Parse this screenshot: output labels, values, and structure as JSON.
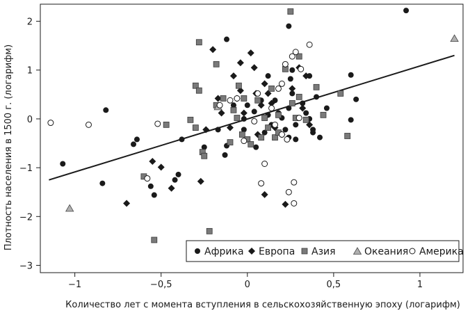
{
  "chart_data": {
    "type": "scatter",
    "xlabel": "Количество лет с момента вступления в сельскохозяйственную эпоху (логарифм)",
    "ylabel": "Плотность населения в 1500 г. (логарифм)",
    "xlim": [
      -1.2,
      1.25
    ],
    "ylim": [
      -3.15,
      2.35
    ],
    "xticks": [
      -1,
      -0.5,
      0,
      0.5,
      1
    ],
    "xtick_labels": [
      "−1",
      "−0,5",
      "0",
      "0,5",
      "1"
    ],
    "yticks": [
      -3,
      -2,
      -1,
      0,
      1,
      2
    ],
    "ytick_labels": [
      "−3",
      "−2",
      "−1",
      "0",
      "1",
      "2"
    ],
    "grid": false,
    "legend_position": "bottom-right",
    "trendline": {
      "x": [
        -1.15,
        1.2
      ],
      "y": [
        -1.25,
        1.3
      ]
    },
    "series": [
      {
        "name": "Африка",
        "marker": "circle",
        "color": "#1a1a1a",
        "points": [
          [
            -1.07,
            -0.92
          ],
          [
            -0.84,
            -1.32
          ],
          [
            -0.82,
            0.18
          ],
          [
            -0.66,
            -0.52
          ],
          [
            -0.64,
            -0.42
          ],
          [
            -0.56,
            -1.38
          ],
          [
            -0.54,
            -1.56
          ],
          [
            -0.42,
            -1.25
          ],
          [
            -0.4,
            -1.14
          ],
          [
            -0.38,
            -0.42
          ],
          [
            -0.25,
            -0.58
          ],
          [
            -0.25,
            -0.74
          ],
          [
            -0.17,
            -0.22
          ],
          [
            -0.13,
            -0.74
          ],
          [
            -0.12,
            -0.55
          ],
          [
            -0.12,
            1.63
          ],
          [
            -0.08,
            0.28
          ],
          [
            -0.02,
            0.0
          ],
          [
            -0.02,
            -0.22
          ],
          [
            0.0,
            0.28
          ],
          [
            0.04,
            0.15
          ],
          [
            0.05,
            -0.58
          ],
          [
            0.08,
            0.38
          ],
          [
            0.1,
            -0.28
          ],
          [
            0.12,
            0.88
          ],
          [
            0.12,
            0.08
          ],
          [
            0.14,
            -0.12
          ],
          [
            0.16,
            0.38
          ],
          [
            0.18,
            0.62
          ],
          [
            0.18,
            0.12
          ],
          [
            0.2,
            0.02
          ],
          [
            0.22,
            -0.22
          ],
          [
            0.24,
            0.22
          ],
          [
            0.24,
            -0.38
          ],
          [
            0.25,
            0.82
          ],
          [
            0.26,
            0.52
          ],
          [
            0.24,
            1.9
          ],
          [
            0.26,
            1.0
          ],
          [
            0.28,
            -0.12
          ],
          [
            0.28,
            -0.42
          ],
          [
            0.32,
            0.32
          ],
          [
            0.34,
            0.12
          ],
          [
            0.36,
            0.88
          ],
          [
            0.36,
            0.0
          ],
          [
            0.38,
            -0.22
          ],
          [
            0.38,
            -0.28
          ],
          [
            0.4,
            0.45
          ],
          [
            0.42,
            -0.38
          ],
          [
            0.46,
            0.22
          ],
          [
            0.6,
            0.9
          ],
          [
            0.6,
            -0.02
          ],
          [
            0.63,
            0.4
          ],
          [
            0.92,
            2.22
          ]
        ]
      },
      {
        "name": "Европа",
        "marker": "diamond",
        "color": "#1a1a1a",
        "points": [
          [
            -0.7,
            -1.73
          ],
          [
            -0.55,
            -0.87
          ],
          [
            -0.5,
            -0.99
          ],
          [
            -0.44,
            -1.42
          ],
          [
            -0.27,
            -1.28
          ],
          [
            -0.24,
            -0.22
          ],
          [
            -0.2,
            1.42
          ],
          [
            -0.17,
            0.42
          ],
          [
            -0.15,
            0.12
          ],
          [
            -0.1,
            -0.18
          ],
          [
            -0.08,
            0.88
          ],
          [
            -0.06,
            0.42
          ],
          [
            -0.04,
            1.15
          ],
          [
            -0.04,
            0.58
          ],
          [
            -0.02,
            0.12
          ],
          [
            0.02,
            1.35
          ],
          [
            0.04,
            1.05
          ],
          [
            0.05,
            0.52
          ],
          [
            0.06,
            -0.32
          ],
          [
            0.08,
            0.28
          ],
          [
            0.1,
            0.72
          ],
          [
            0.1,
            -1.55
          ],
          [
            0.12,
            0.52
          ],
          [
            0.14,
            0.32
          ],
          [
            0.16,
            -0.18
          ],
          [
            0.2,
            -0.32
          ],
          [
            0.22,
            -1.75
          ],
          [
            0.26,
            0.62
          ],
          [
            0.3,
            1.05
          ],
          [
            0.32,
            0.22
          ],
          [
            0.34,
            0.88
          ],
          [
            0.36,
            -0.12
          ]
        ]
      },
      {
        "name": "Азия",
        "marker": "square",
        "color": "#7a7a7a",
        "points": [
          [
            -0.6,
            -1.18
          ],
          [
            -0.54,
            -2.48
          ],
          [
            -0.47,
            -0.12
          ],
          [
            -0.33,
            -0.02
          ],
          [
            -0.3,
            0.68
          ],
          [
            -0.3,
            -0.18
          ],
          [
            -0.28,
            1.57
          ],
          [
            -0.28,
            0.58
          ],
          [
            -0.26,
            -0.68
          ],
          [
            -0.25,
            -0.76
          ],
          [
            -0.22,
            -2.3
          ],
          [
            -0.18,
            1.12
          ],
          [
            -0.18,
            0.28
          ],
          [
            -0.14,
            0.42
          ],
          [
            -0.1,
            -0.48
          ],
          [
            -0.08,
            0.18
          ],
          [
            -0.06,
            0.02
          ],
          [
            -0.05,
            0.68
          ],
          [
            -0.03,
            -0.32
          ],
          [
            -0.02,
            0.42
          ],
          [
            0.0,
            -0.42
          ],
          [
            0.02,
            -0.52
          ],
          [
            0.06,
            0.38
          ],
          [
            0.08,
            -0.38
          ],
          [
            0.1,
            0.02
          ],
          [
            0.12,
            -0.18
          ],
          [
            0.14,
            0.62
          ],
          [
            0.16,
            -0.38
          ],
          [
            0.18,
            0.08
          ],
          [
            0.18,
            -0.28
          ],
          [
            0.22,
            1.02
          ],
          [
            0.25,
            2.2
          ],
          [
            0.26,
            0.32
          ],
          [
            0.28,
            0.02
          ],
          [
            0.3,
            1.28
          ],
          [
            0.3,
            0.45
          ],
          [
            0.34,
            -0.02
          ],
          [
            0.4,
            0.65
          ],
          [
            0.44,
            0.08
          ],
          [
            0.54,
            0.52
          ],
          [
            0.58,
            -0.35
          ]
        ]
      },
      {
        "name": "Океания",
        "marker": "triangle",
        "color": "#b0b0b0",
        "points": [
          [
            -1.03,
            -1.83
          ],
          [
            -0.17,
            0.25
          ],
          [
            1.2,
            1.65
          ]
        ]
      },
      {
        "name": "Америка",
        "marker": "open-circle",
        "color": "#ffffff",
        "points": [
          [
            -1.14,
            -0.08
          ],
          [
            -0.92,
            -0.12
          ],
          [
            -0.58,
            -1.22
          ],
          [
            -0.52,
            -0.1
          ],
          [
            -0.16,
            0.28
          ],
          [
            -0.1,
            0.38
          ],
          [
            -0.06,
            0.42
          ],
          [
            -0.02,
            -0.45
          ],
          [
            0.04,
            -0.05
          ],
          [
            0.06,
            0.52
          ],
          [
            0.08,
            -1.32
          ],
          [
            0.1,
            -0.92
          ],
          [
            0.14,
            0.22
          ],
          [
            0.16,
            -0.12
          ],
          [
            0.18,
            0.62
          ],
          [
            0.2,
            0.72
          ],
          [
            0.2,
            -0.32
          ],
          [
            0.22,
            1.12
          ],
          [
            0.23,
            -0.42
          ],
          [
            0.24,
            -1.5
          ],
          [
            0.26,
            1.28
          ],
          [
            0.27,
            -1.3
          ],
          [
            0.27,
            -1.73
          ],
          [
            0.28,
            1.37
          ],
          [
            0.3,
            0.02
          ],
          [
            0.31,
            1.02
          ],
          [
            0.36,
            1.52
          ]
        ]
      }
    ]
  }
}
